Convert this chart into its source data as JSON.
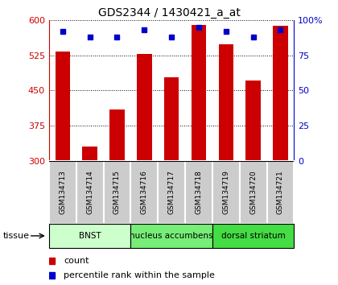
{
  "title": "GDS2344 / 1430421_a_at",
  "samples": [
    "GSM134713",
    "GSM134714",
    "GSM134715",
    "GSM134716",
    "GSM134717",
    "GSM134718",
    "GSM134719",
    "GSM134720",
    "GSM134721"
  ],
  "counts": [
    532,
    330,
    410,
    528,
    478,
    590,
    548,
    472,
    588
  ],
  "percentiles": [
    92,
    88,
    88,
    93,
    88,
    95,
    92,
    88,
    93
  ],
  "ylim_left": [
    300,
    600
  ],
  "ylim_right": [
    0,
    100
  ],
  "yticks_left": [
    300,
    375,
    450,
    525,
    600
  ],
  "yticks_right": [
    0,
    25,
    50,
    75,
    100
  ],
  "bar_color": "#cc0000",
  "dot_color": "#0000cc",
  "groups": [
    {
      "label": "BNST",
      "start": 0,
      "end": 3,
      "color": "#ccffcc"
    },
    {
      "label": "nucleus accumbens",
      "start": 3,
      "end": 6,
      "color": "#77ee77"
    },
    {
      "label": "dorsal striatum",
      "start": 6,
      "end": 9,
      "color": "#44dd44"
    }
  ],
  "tissue_label": "tissue",
  "legend_count": "count",
  "legend_pct": "percentile rank within the sample"
}
